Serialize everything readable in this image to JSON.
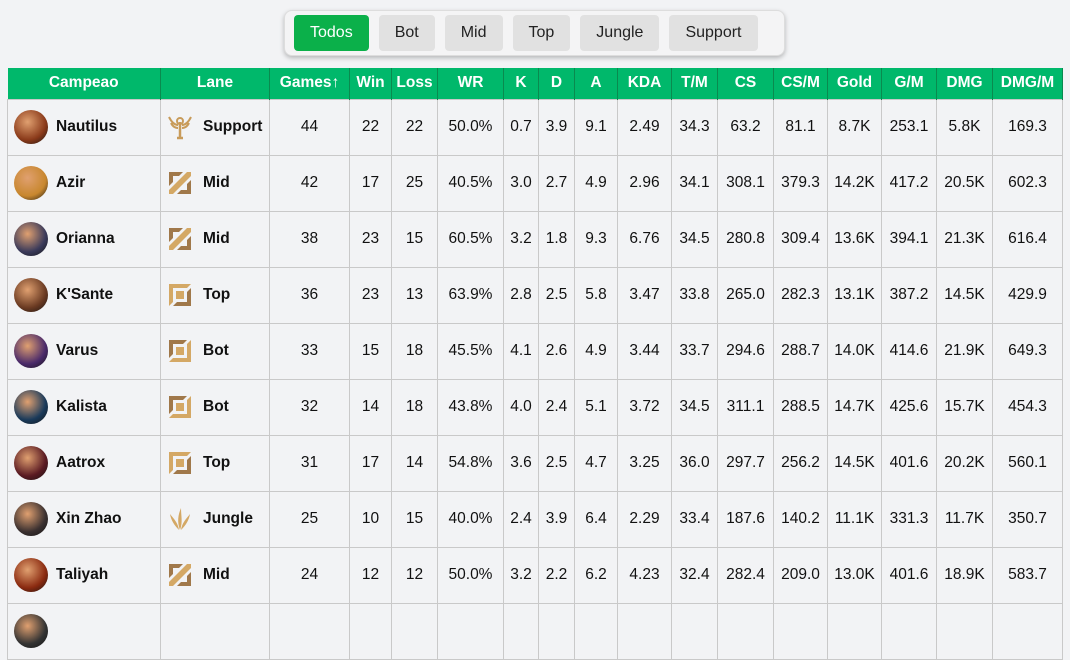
{
  "filters": {
    "items": [
      "Todos",
      "Bot",
      "Mid",
      "Top",
      "Jungle",
      "Support"
    ],
    "active": "Todos"
  },
  "table": {
    "headers": [
      "Campeao",
      "Lane",
      "Games↑",
      "Win",
      "Loss",
      "WR",
      "K",
      "D",
      "A",
      "KDA",
      "T/M",
      "CS",
      "CS/M",
      "Gold",
      "G/M",
      "DMG",
      "DMG/M"
    ],
    "sort": {
      "column": "Games",
      "direction": "asc-arrow"
    },
    "colors": {
      "header": "#00b86b",
      "lane_icon": "#c89b5a"
    },
    "rows": [
      {
        "champion": "Nautilus",
        "avatar_color": "#8a3a1a",
        "lane": "Support",
        "lane_icon": "support-icon",
        "stats": [
          "44",
          "22",
          "22",
          "50.0%",
          "0.7",
          "3.9",
          "9.1",
          "2.49",
          "34.3",
          "63.2",
          "81.1",
          "8.7K",
          "253.1",
          "5.8K",
          "169.3"
        ]
      },
      {
        "champion": "Azir",
        "avatar_color": "#c8872e",
        "lane": "Mid",
        "lane_icon": "mid-icon",
        "stats": [
          "42",
          "17",
          "25",
          "40.5%",
          "3.0",
          "2.7",
          "4.9",
          "2.96",
          "34.1",
          "308.1",
          "379.3",
          "14.2K",
          "417.2",
          "20.5K",
          "602.3"
        ]
      },
      {
        "champion": "Orianna",
        "avatar_color": "#3a3a5a",
        "lane": "Mid",
        "lane_icon": "mid-icon",
        "stats": [
          "38",
          "23",
          "15",
          "60.5%",
          "3.2",
          "1.8",
          "9.3",
          "6.76",
          "34.5",
          "280.8",
          "309.4",
          "13.6K",
          "394.1",
          "21.3K",
          "616.4"
        ]
      },
      {
        "champion": "K'Sante",
        "avatar_color": "#6a3a22",
        "lane": "Top",
        "lane_icon": "top-icon",
        "stats": [
          "36",
          "23",
          "13",
          "63.9%",
          "2.8",
          "2.5",
          "5.8",
          "3.47",
          "33.8",
          "265.0",
          "282.3",
          "13.1K",
          "387.2",
          "14.5K",
          "429.9"
        ]
      },
      {
        "champion": "Varus",
        "avatar_color": "#4a2a6a",
        "lane": "Bot",
        "lane_icon": "bot-icon",
        "stats": [
          "33",
          "15",
          "18",
          "45.5%",
          "4.1",
          "2.6",
          "4.9",
          "3.44",
          "33.7",
          "294.6",
          "288.7",
          "14.0K",
          "414.6",
          "21.9K",
          "649.3"
        ]
      },
      {
        "champion": "Kalista",
        "avatar_color": "#1a3a5a",
        "lane": "Bot",
        "lane_icon": "bot-icon",
        "stats": [
          "32",
          "14",
          "18",
          "43.8%",
          "4.0",
          "2.4",
          "5.1",
          "3.72",
          "34.5",
          "311.1",
          "288.5",
          "14.7K",
          "425.6",
          "15.7K",
          "454.3"
        ]
      },
      {
        "champion": "Aatrox",
        "avatar_color": "#5a1a22",
        "lane": "Top",
        "lane_icon": "top-icon",
        "stats": [
          "31",
          "17",
          "14",
          "54.8%",
          "3.6",
          "2.5",
          "4.7",
          "3.25",
          "36.0",
          "297.7",
          "256.2",
          "14.5K",
          "401.6",
          "20.2K",
          "560.1"
        ]
      },
      {
        "champion": "Xin Zhao",
        "avatar_color": "#3a3030",
        "lane": "Jungle",
        "lane_icon": "jungle-icon",
        "stats": [
          "25",
          "10",
          "15",
          "40.0%",
          "2.4",
          "3.9",
          "6.4",
          "2.29",
          "33.4",
          "187.6",
          "140.2",
          "11.1K",
          "331.3",
          "11.7K",
          "350.7"
        ]
      },
      {
        "champion": "Taliyah",
        "avatar_color": "#8a2a10",
        "lane": "Mid",
        "lane_icon": "mid-icon",
        "stats": [
          "24",
          "12",
          "12",
          "50.0%",
          "3.2",
          "2.2",
          "6.2",
          "4.23",
          "32.4",
          "282.4",
          "209.0",
          "13.0K",
          "401.6",
          "18.9K",
          "583.7"
        ]
      },
      {
        "champion": "",
        "avatar_color": "#333333",
        "lane": "",
        "lane_icon": "",
        "stats": [
          "",
          "",
          "",
          "",
          "",
          "",
          "",
          "",
          "",
          "",
          "",
          "",
          "",
          "",
          ""
        ]
      }
    ]
  }
}
